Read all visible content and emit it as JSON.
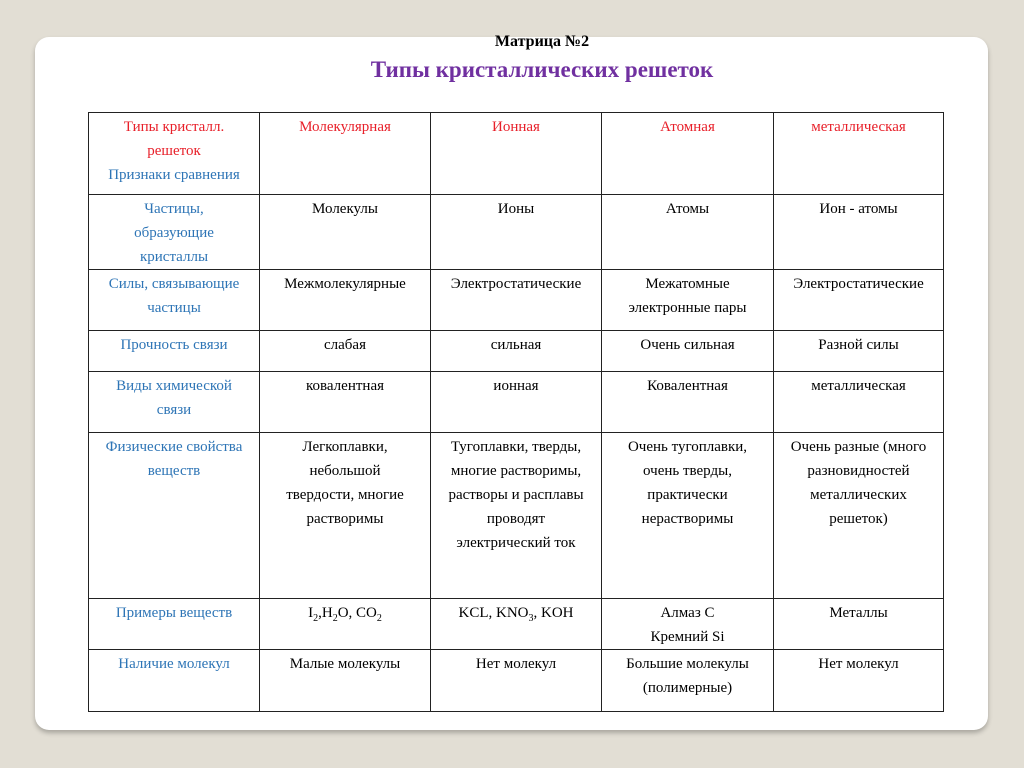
{
  "slide": {
    "title": "Матрица №2",
    "subtitle": "Типы кристаллических решеток"
  },
  "colors": {
    "header": "#e8202a",
    "labels": "#2e75b6",
    "subtitle": "#7030a0"
  },
  "table": {
    "corner": {
      "red_lines": [
        "Типы кристалл.",
        "решеток"
      ],
      "blue_lines": [
        "Признаки сравнения"
      ]
    },
    "columns": [
      "Молекулярная",
      "Ионная",
      "Атомная",
      "металлическая"
    ],
    "rows": [
      {
        "label": [
          "Частицы,",
          "образующие",
          "кристаллы"
        ],
        "cells": [
          [
            "Молекулы"
          ],
          [
            "Ионы"
          ],
          [
            "Атомы"
          ],
          [
            "Ион - атомы"
          ]
        ]
      },
      {
        "label": [
          "Силы, связывающие",
          "частицы"
        ],
        "cells": [
          [
            "Межмолекулярные"
          ],
          [
            "Электростатические"
          ],
          [
            "Межатомные",
            "электронные пары"
          ],
          [
            "Электростатические"
          ]
        ]
      },
      {
        "label": [
          "Прочность связи"
        ],
        "cells": [
          [
            "слабая"
          ],
          [
            "сильная"
          ],
          [
            "Очень сильная"
          ],
          [
            "Разной силы"
          ]
        ]
      },
      {
        "label": [
          "Виды химической",
          "связи"
        ],
        "cells": [
          [
            "ковалентная"
          ],
          [
            "ионная"
          ],
          [
            "Ковалентная"
          ],
          [
            "металлическая"
          ]
        ]
      },
      {
        "label": [
          "Физические свойства",
          "веществ"
        ],
        "cells": [
          [
            "Легкоплавки,",
            "небольшой",
            "твердости, многие",
            "растворимы"
          ],
          [
            "Тугоплавки, тверды,",
            "многие растворимы,",
            "растворы и расплавы",
            "проводят",
            "электрический ток"
          ],
          [
            "Очень тугоплавки,",
            "очень тверды,",
            "практически",
            "нерастворимы"
          ],
          [
            "Очень разные (много",
            "разновидностей",
            "металлических",
            "решеток)"
          ]
        ]
      },
      {
        "label": [
          "Примеры веществ"
        ],
        "cells": [
          [
            [
              {
                "t": "I"
              },
              {
                "sub": "2"
              },
              {
                "t": ",H"
              },
              {
                "sub": "2"
              },
              {
                "t": "O, CO"
              },
              {
                "sub": "2"
              }
            ]
          ],
          [
            [
              {
                "t": "KCL, KNO"
              },
              {
                "sub": "3"
              },
              {
                "t": ", KOH"
              }
            ]
          ],
          [
            "Алмаз С",
            "Кремний Si"
          ],
          [
            "Металлы"
          ]
        ]
      },
      {
        "label": [
          "Наличие молекул"
        ],
        "cells": [
          [
            "Малые молекулы"
          ],
          [
            "Нет молекул"
          ],
          [
            "Большие молекулы",
            "(полимерные)"
          ],
          [
            "Нет молекул"
          ]
        ]
      }
    ]
  }
}
